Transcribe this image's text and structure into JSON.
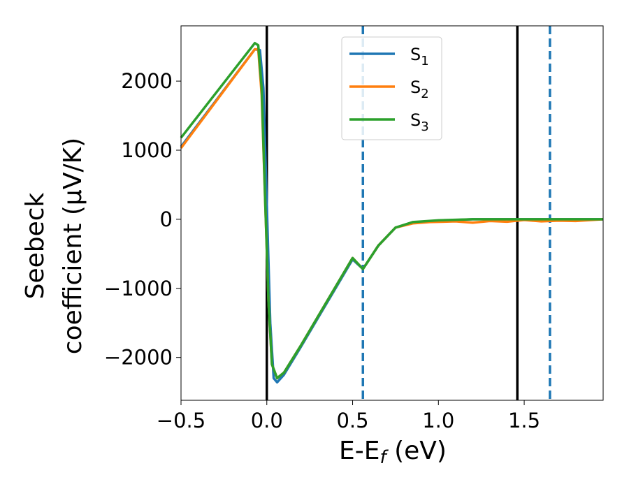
{
  "chart_data": {
    "type": "line",
    "xlabel": "E-E",
    "xlabel_sub": "f",
    "xlabel_unit": " (eV)",
    "ylabel_line1": "Seebeck",
    "ylabel_line2": "coefficient  (μV/K)",
    "xlim": [
      -0.5,
      1.96
    ],
    "ylim": [
      -2620,
      2800
    ],
    "xticks": [
      -0.5,
      0.0,
      0.5,
      1.0,
      1.5
    ],
    "xtick_labels": [
      "−0.5",
      "0.0",
      "0.5",
      "1.0",
      "1.5"
    ],
    "yticks": [
      2000,
      1000,
      0,
      -1000,
      -2000
    ],
    "ytick_labels": [
      "2000",
      "1000",
      "0",
      "−1000",
      "−2000"
    ],
    "grid": false,
    "legend_position": "upper-center",
    "vlines": [
      {
        "x": 0.0,
        "style": "solid",
        "color": "#000000"
      },
      {
        "x": 1.46,
        "style": "solid",
        "color": "#000000"
      },
      {
        "x": 0.56,
        "style": "dashed",
        "color": "#1f77b4"
      },
      {
        "x": 1.65,
        "style": "dashed",
        "color": "#1f77b4"
      }
    ],
    "series": [
      {
        "name": "S",
        "sub": "1",
        "color": "#1f77b4",
        "x": [
          -0.5,
          -0.07,
          -0.04,
          -0.02,
          0.0,
          0.02,
          0.04,
          0.06,
          0.1,
          0.2,
          0.3,
          0.4,
          0.5,
          0.56,
          0.65,
          0.75,
          0.85,
          1.0,
          1.2,
          1.46,
          1.65,
          1.8,
          1.96
        ],
        "y": [
          1050,
          2460,
          2450,
          1900,
          200,
          -1500,
          -2300,
          -2360,
          -2250,
          -1840,
          -1420,
          -1000,
          -580,
          -720,
          -380,
          -120,
          -50,
          -20,
          0,
          0,
          0,
          0,
          0
        ]
      },
      {
        "name": "S",
        "sub": "2",
        "color": "#ff7f0e",
        "x": [
          -0.5,
          -0.07,
          -0.05,
          -0.03,
          -0.01,
          0.01,
          0.03,
          0.06,
          0.1,
          0.2,
          0.3,
          0.4,
          0.5,
          0.56,
          0.65,
          0.75,
          0.85,
          0.95,
          1.1,
          1.2,
          1.3,
          1.4,
          1.5,
          1.6,
          1.7,
          1.8,
          1.96
        ],
        "y": [
          1030,
          2460,
          2460,
          1800,
          300,
          -1200,
          -2100,
          -2300,
          -2220,
          -1820,
          -1400,
          -980,
          -560,
          -720,
          -380,
          -120,
          -60,
          -40,
          -30,
          -50,
          -25,
          -35,
          -10,
          -30,
          -20,
          -25,
          0
        ]
      },
      {
        "name": "S",
        "sub": "3",
        "color": "#2ca02c",
        "x": [
          -0.5,
          -0.07,
          -0.05,
          -0.03,
          -0.01,
          0.01,
          0.03,
          0.06,
          0.1,
          0.2,
          0.3,
          0.4,
          0.5,
          0.56,
          0.65,
          0.75,
          0.85,
          1.0,
          1.2,
          1.46,
          1.65,
          1.8,
          1.96
        ],
        "y": [
          1180,
          2550,
          2520,
          1900,
          300,
          -1200,
          -2100,
          -2300,
          -2220,
          -1820,
          -1400,
          -980,
          -560,
          -720,
          -380,
          -120,
          -40,
          -15,
          0,
          0,
          0,
          0,
          0
        ]
      }
    ]
  }
}
